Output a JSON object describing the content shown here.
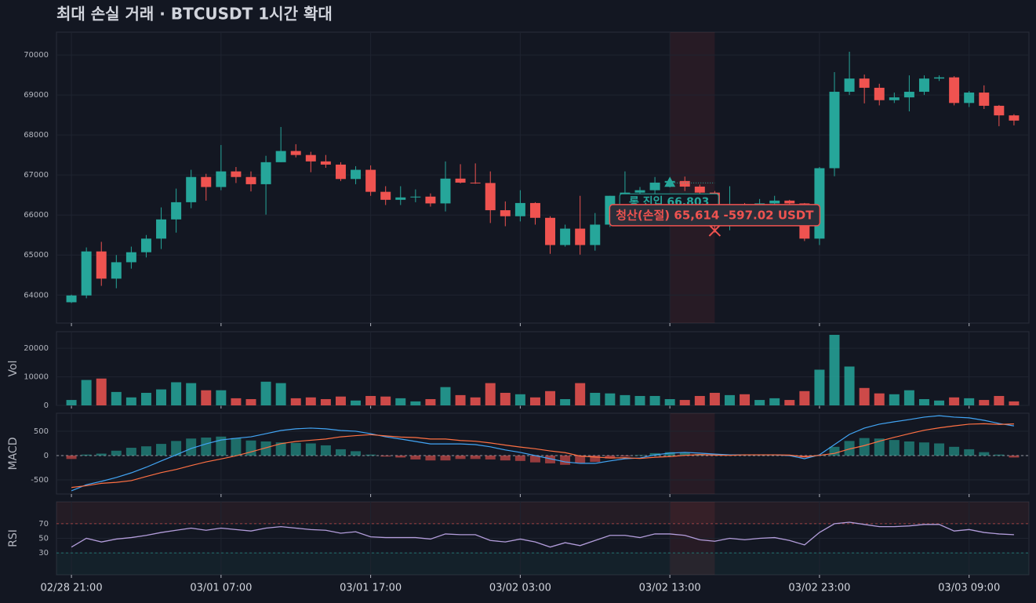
{
  "chart_data": [
    {
      "type": "candlestick",
      "title": "최대 손실 거래   ·   BTCUSDT 1시간 확대",
      "categories": [
        "02/28 21:00",
        null,
        null,
        null,
        null,
        null,
        null,
        null,
        null,
        null,
        "03/01 07:00",
        null,
        null,
        null,
        null,
        null,
        null,
        null,
        null,
        null,
        "03/01 17:00",
        null,
        null,
        null,
        null,
        null,
        null,
        null,
        null,
        null,
        "03/02 03:00",
        null,
        null,
        null,
        null,
        null,
        null,
        null,
        null,
        null,
        "03/02 13:00",
        null,
        null,
        null,
        null,
        null,
        null,
        null,
        null,
        null,
        "03/02 23:00",
        null,
        null,
        null,
        null,
        null,
        null,
        null,
        null,
        null,
        "03/03 09:00",
        null,
        null,
        null
      ],
      "open": [
        63820,
        63990,
        65090,
        64410,
        64820,
        65070,
        65410,
        65890,
        66320,
        66950,
        66700,
        67090,
        66950,
        66770,
        67320,
        67600,
        67500,
        67340,
        67260,
        66900,
        67130,
        66580,
        66380,
        66440,
        66460,
        66290,
        66910,
        66810,
        66800,
        66120,
        65970,
        66300,
        65930,
        65250,
        65660,
        65250,
        65760,
        66480,
        66560,
        66620,
        66810,
        66850,
        66710,
        66560,
        66040,
        66200,
        66150,
        66290,
        66360,
        66290,
        65410,
        67170,
        69080,
        69410,
        69180,
        68870,
        68940,
        69080,
        69410,
        69440,
        68800,
        69060,
        68730,
        68490
      ],
      "high": [
        64010,
        65190,
        65330,
        65000,
        65210,
        65500,
        66190,
        66660,
        67130,
        67030,
        67750,
        67200,
        67090,
        67480,
        68200,
        67770,
        67580,
        67500,
        67320,
        67220,
        67240,
        66720,
        66720,
        66640,
        66540,
        67340,
        67270,
        67290,
        67090,
        66340,
        66620,
        66320,
        65970,
        65760,
        66480,
        66050,
        66480,
        67090,
        66700,
        66950,
        66940,
        66960,
        66760,
        66600,
        66720,
        66300,
        66400,
        66480,
        66380,
        66300,
        67200,
        69570,
        70080,
        69510,
        69280,
        69060,
        69490,
        69490,
        69490,
        69470,
        69100,
        69240,
        68750,
        68520
      ],
      "low": [
        63800,
        63920,
        64230,
        64170,
        64660,
        64940,
        65150,
        65560,
        66170,
        66360,
        66620,
        66800,
        66590,
        66010,
        67320,
        67440,
        67070,
        67180,
        66850,
        66770,
        66480,
        66250,
        66250,
        66320,
        66210,
        66090,
        66790,
        66780,
        65800,
        65720,
        65840,
        65760,
        65030,
        65210,
        65010,
        65110,
        65700,
        66170,
        66500,
        66500,
        66690,
        66600,
        66200,
        65560,
        65620,
        66050,
        66100,
        66170,
        66100,
        65350,
        65250,
        66970,
        69000,
        68790,
        68740,
        68800,
        68590,
        69000,
        69350,
        68740,
        68700,
        68650,
        68220,
        68240
      ],
      "close": [
        63990,
        65090,
        64410,
        64820,
        65070,
        65410,
        65890,
        66320,
        66950,
        66700,
        67090,
        66950,
        66770,
        67320,
        67600,
        67500,
        67340,
        67260,
        66900,
        67130,
        66580,
        66380,
        66440,
        66460,
        66290,
        66910,
        66810,
        66800,
        66120,
        65970,
        66300,
        65930,
        65250,
        65660,
        65250,
        65760,
        66480,
        66560,
        66620,
        66810,
        66850,
        66710,
        66560,
        66040,
        66200,
        66150,
        66290,
        66360,
        66290,
        65410,
        67170,
        69080,
        69410,
        69180,
        68870,
        68940,
        69080,
        69410,
        69440,
        68800,
        69060,
        68730,
        68490,
        68360
      ],
      "up_color": "#26a69a",
      "down_color": "#ef5350",
      "ylim": [
        63300,
        70570
      ],
      "yticks": [
        64000,
        65000,
        66000,
        67000,
        68000,
        69000,
        70000
      ],
      "grid": true,
      "highlight": true,
      "annotations": [
        {
          "marker": "triangle",
          "label": "롱 진입 66,803",
          "value": 66803,
          "index": 40,
          "color": "#26a69a"
        },
        {
          "marker": "cross",
          "label": "청산(손절) 65,614  -597.02 USDT",
          "value": 65614,
          "index": 43,
          "color": "#ef5350"
        }
      ]
    },
    {
      "type": "bar",
      "ylabel": "Vol",
      "values": [
        1900,
        8900,
        9400,
        4700,
        2800,
        4400,
        5600,
        8100,
        7800,
        5300,
        5300,
        2500,
        2200,
        8300,
        7800,
        2500,
        2800,
        2200,
        3100,
        1700,
        3300,
        3100,
        2500,
        1400,
        2200,
        6400,
        3600,
        2800,
        7800,
        4400,
        3900,
        2800,
        5000,
        2200,
        7800,
        4400,
        4200,
        3600,
        3300,
        3300,
        2200,
        1900,
        3300,
        4400,
        3600,
        3900,
        1900,
        2500,
        1900,
        5000,
        12500,
        24700,
        13600,
        6100,
        4200,
        3900,
        5300,
        2200,
        1700,
        2800,
        2500,
        1900,
        3300,
        1400
      ],
      "ylim": [
        0,
        25800
      ],
      "yticks": [
        0,
        10000,
        20000
      ],
      "grid": true
    },
    {
      "type": "macd",
      "ylabel": "MACD",
      "macd": [
        -725,
        -600,
        -530,
        -450,
        -355,
        -240,
        -110,
        15,
        145,
        240,
        320,
        355,
        385,
        450,
        515,
        550,
        565,
        550,
        515,
        500,
        450,
        385,
        340,
        290,
        240,
        240,
        240,
        225,
        180,
        115,
        65,
        0,
        -65,
        -130,
        -160,
        -160,
        -110,
        -65,
        -50,
        15,
        50,
        65,
        50,
        30,
        15,
        15,
        15,
        15,
        0,
        -65,
        15,
        225,
        435,
        565,
        645,
        695,
        740,
        790,
        820,
        790,
        775,
        725,
        660,
        610
      ],
      "signal": [
        -655,
        -620,
        -570,
        -550,
        -515,
        -430,
        -350,
        -285,
        -205,
        -130,
        -70,
        -5,
        75,
        160,
        245,
        290,
        315,
        340,
        385,
        410,
        430,
        405,
        380,
        370,
        340,
        340,
        310,
        295,
        260,
        215,
        175,
        140,
        95,
        60,
        -10,
        -30,
        -50,
        -45,
        -60,
        -35,
        -20,
        5,
        20,
        10,
        5,
        15,
        15,
        15,
        10,
        -25,
        5,
        45,
        135,
        205,
        295,
        375,
        450,
        520,
        570,
        610,
        645,
        655,
        640,
        650
      ],
      "histogram": [
        -70,
        20,
        40,
        100,
        160,
        190,
        240,
        300,
        350,
        370,
        390,
        360,
        310,
        290,
        270,
        260,
        250,
        210,
        130,
        90,
        20,
        -20,
        -40,
        -80,
        -100,
        -100,
        -70,
        -70,
        -80,
        -100,
        -110,
        -140,
        -160,
        -190,
        -150,
        -130,
        -60,
        -20,
        10,
        50,
        70,
        60,
        30,
        20,
        10,
        0,
        0,
        0,
        -10,
        -40,
        10,
        180,
        300,
        360,
        350,
        320,
        290,
        270,
        250,
        180,
        130,
        70,
        20,
        -40
      ],
      "macd_color": "#42a5f5",
      "signal_color": "#ff7043",
      "up_color": "#26a69a",
      "down_color": "#ef5350",
      "ylim": [
        -790,
        870
      ],
      "yticks": [
        -500,
        0,
        500
      ],
      "grid": true,
      "highlight": true,
      "zero_line": true
    },
    {
      "type": "line",
      "ylabel": "RSI",
      "values": [
        38,
        50,
        45,
        49,
        51,
        54,
        58,
        61,
        64,
        61,
        64,
        62,
        60,
        64,
        66,
        64,
        62,
        61,
        57,
        59,
        52,
        51,
        51,
        51,
        49,
        56,
        55,
        55,
        47,
        45,
        49,
        45,
        38,
        44,
        40,
        47,
        54,
        54,
        51,
        56,
        56,
        54,
        48,
        46,
        50,
        48,
        50,
        51,
        47,
        41,
        58,
        70,
        72,
        69,
        66,
        66,
        67,
        69,
        69,
        60,
        62,
        58,
        56,
        55
      ],
      "color": "#b39ddb",
      "overbought": 70,
      "oversold": 30,
      "ylim": [
        0,
        100
      ],
      "yticks": [
        30,
        50,
        70
      ],
      "grid": true,
      "highlight": true
    }
  ]
}
